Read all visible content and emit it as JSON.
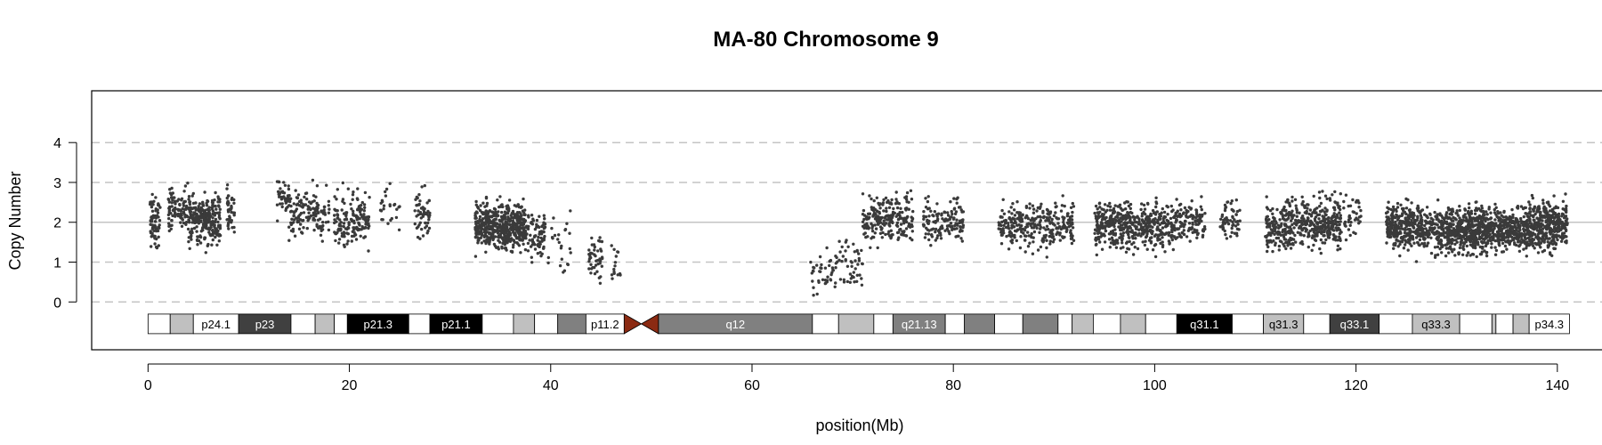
{
  "chart_data": {
    "type": "scatter",
    "title": "MA-80  Chromosome 9",
    "xlabel": "position(Mb)",
    "ylabel": "Copy Number",
    "xlim": [
      -5.6,
      147
    ],
    "ylim": [
      -1.2,
      5.3
    ],
    "x_ticks": [
      0,
      20,
      40,
      60,
      80,
      100,
      120,
      140
    ],
    "y_ticks": [
      0,
      1,
      2,
      3,
      4
    ],
    "hlines": [
      {
        "y": 0,
        "style": "dashed"
      },
      {
        "y": 1,
        "style": "dashed"
      },
      {
        "y": 2,
        "style": "solid"
      },
      {
        "y": 3,
        "style": "dashed"
      },
      {
        "y": 4,
        "style": "dashed"
      }
    ],
    "point_color": "#3a3a3a",
    "segments": [
      {
        "x": [
          0.2,
          1.2
        ],
        "mean": 2.0,
        "spread": 0.65,
        "count": 70
      },
      {
        "x": [
          2.0,
          4.0
        ],
        "mean": 2.3,
        "spread": 0.55,
        "count": 90
      },
      {
        "x": [
          4.0,
          7.2
        ],
        "mean": 2.1,
        "spread": 0.6,
        "count": 260
      },
      {
        "x": [
          7.8,
          8.6
        ],
        "mean": 2.3,
        "spread": 0.6,
        "count": 40
      },
      {
        "x": [
          12.8,
          14.0
        ],
        "mean": 2.6,
        "spread": 0.5,
        "count": 40
      },
      {
        "x": [
          14.0,
          18.0
        ],
        "mean": 2.2,
        "spread": 0.6,
        "count": 140
      },
      {
        "x": [
          18.5,
          20.5
        ],
        "mean": 2.0,
        "spread": 0.7,
        "count": 90
      },
      {
        "x": [
          20.5,
          22.0
        ],
        "mean": 2.1,
        "spread": 0.6,
        "count": 70
      },
      {
        "x": [
          23.0,
          25.0
        ],
        "mean": 2.3,
        "spread": 0.5,
        "count": 25
      },
      {
        "x": [
          26.5,
          28.0
        ],
        "mean": 2.2,
        "spread": 0.55,
        "count": 55
      },
      {
        "x": [
          32.5,
          37.5
        ],
        "mean": 1.9,
        "spread": 0.55,
        "count": 520
      },
      {
        "x": [
          37.5,
          39.5
        ],
        "mean": 1.7,
        "spread": 0.6,
        "count": 80
      },
      {
        "x": [
          39.5,
          42.0
        ],
        "mean": 1.4,
        "spread": 0.8,
        "count": 25
      },
      {
        "x": [
          43.8,
          45.2
        ],
        "mean": 1.1,
        "spread": 0.6,
        "count": 45
      },
      {
        "x": [
          46.0,
          47.0
        ],
        "mean": 0.9,
        "spread": 0.6,
        "count": 15
      },
      {
        "x": [
          65.8,
          68.5
        ],
        "mean": 0.7,
        "spread": 0.55,
        "count": 45
      },
      {
        "x": [
          68.5,
          71.0
        ],
        "mean": 0.9,
        "spread": 0.6,
        "count": 45
      },
      {
        "x": [
          71.0,
          76.0
        ],
        "mean": 2.1,
        "spread": 0.55,
        "count": 230
      },
      {
        "x": [
          77.0,
          81.0
        ],
        "mean": 2.0,
        "spread": 0.5,
        "count": 140
      },
      {
        "x": [
          84.5,
          87.0
        ],
        "mean": 1.9,
        "spread": 0.55,
        "count": 110
      },
      {
        "x": [
          87.0,
          92.0
        ],
        "mean": 1.9,
        "spread": 0.6,
        "count": 190
      },
      {
        "x": [
          94.0,
          99.0
        ],
        "mean": 1.9,
        "spread": 0.55,
        "count": 330
      },
      {
        "x": [
          99.0,
          102.0
        ],
        "mean": 1.9,
        "spread": 0.55,
        "count": 180
      },
      {
        "x": [
          102.0,
          105.0
        ],
        "mean": 2.0,
        "spread": 0.5,
        "count": 120
      },
      {
        "x": [
          106.5,
          108.5
        ],
        "mean": 2.1,
        "spread": 0.5,
        "count": 60
      },
      {
        "x": [
          111.0,
          114.5
        ],
        "mean": 1.9,
        "spread": 0.55,
        "count": 200
      },
      {
        "x": [
          114.5,
          118.5
        ],
        "mean": 2.0,
        "spread": 0.6,
        "count": 260
      },
      {
        "x": [
          118.5,
          120.5
        ],
        "mean": 2.1,
        "spread": 0.5,
        "count": 40
      },
      {
        "x": [
          123.0,
          126.0
        ],
        "mean": 1.9,
        "spread": 0.55,
        "count": 240
      },
      {
        "x": [
          126.0,
          129.0
        ],
        "mean": 1.8,
        "spread": 0.55,
        "count": 210
      },
      {
        "x": [
          129.0,
          133.0
        ],
        "mean": 1.8,
        "spread": 0.6,
        "count": 420
      },
      {
        "x": [
          133.0,
          137.0
        ],
        "mean": 1.8,
        "spread": 0.55,
        "count": 330
      },
      {
        "x": [
          137.0,
          141.0
        ],
        "mean": 1.9,
        "spread": 0.6,
        "count": 380
      }
    ],
    "ideogram": {
      "y": -0.55,
      "bands": [
        {
          "start": 0.0,
          "end": 2.2,
          "fill": "#ffffff",
          "label": ""
        },
        {
          "start": 2.2,
          "end": 4.5,
          "fill": "#c0c0c0",
          "label": ""
        },
        {
          "start": 4.5,
          "end": 9.0,
          "fill": "#ffffff",
          "label": "p24.1"
        },
        {
          "start": 9.0,
          "end": 14.2,
          "fill": "#404040",
          "label": "p23"
        },
        {
          "start": 14.2,
          "end": 16.6,
          "fill": "#ffffff",
          "label": ""
        },
        {
          "start": 16.6,
          "end": 18.5,
          "fill": "#c0c0c0",
          "label": ""
        },
        {
          "start": 18.5,
          "end": 19.8,
          "fill": "#ffffff",
          "label": ""
        },
        {
          "start": 19.8,
          "end": 25.9,
          "fill": "#000000",
          "label": "p21.3"
        },
        {
          "start": 25.9,
          "end": 28.0,
          "fill": "#ffffff",
          "label": ""
        },
        {
          "start": 28.0,
          "end": 33.2,
          "fill": "#000000",
          "label": "p21.1"
        },
        {
          "start": 33.2,
          "end": 36.3,
          "fill": "#ffffff",
          "label": ""
        },
        {
          "start": 36.3,
          "end": 38.4,
          "fill": "#c0c0c0",
          "label": ""
        },
        {
          "start": 38.4,
          "end": 40.7,
          "fill": "#ffffff",
          "label": ""
        },
        {
          "start": 40.7,
          "end": 43.5,
          "fill": "#808080",
          "label": ""
        },
        {
          "start": 43.5,
          "end": 47.3,
          "fill": "#ffffff",
          "label": "p11.2"
        },
        {
          "start": 50.7,
          "end": 66.0,
          "fill": "#808080",
          "label": "q12"
        },
        {
          "start": 66.0,
          "end": 68.6,
          "fill": "#ffffff",
          "label": ""
        },
        {
          "start": 68.6,
          "end": 72.1,
          "fill": "#c0c0c0",
          "label": ""
        },
        {
          "start": 72.1,
          "end": 74.0,
          "fill": "#ffffff",
          "label": ""
        },
        {
          "start": 74.0,
          "end": 79.2,
          "fill": "#808080",
          "label": "q21.13"
        },
        {
          "start": 79.2,
          "end": 81.1,
          "fill": "#ffffff",
          "label": ""
        },
        {
          "start": 81.1,
          "end": 84.1,
          "fill": "#808080",
          "label": ""
        },
        {
          "start": 84.1,
          "end": 86.9,
          "fill": "#ffffff",
          "label": ""
        },
        {
          "start": 86.9,
          "end": 90.4,
          "fill": "#808080",
          "label": ""
        },
        {
          "start": 90.4,
          "end": 91.8,
          "fill": "#ffffff",
          "label": ""
        },
        {
          "start": 91.8,
          "end": 93.9,
          "fill": "#c0c0c0",
          "label": ""
        },
        {
          "start": 93.9,
          "end": 96.6,
          "fill": "#ffffff",
          "label": ""
        },
        {
          "start": 96.6,
          "end": 99.1,
          "fill": "#c0c0c0",
          "label": ""
        },
        {
          "start": 99.1,
          "end": 102.2,
          "fill": "#ffffff",
          "label": ""
        },
        {
          "start": 102.2,
          "end": 107.7,
          "fill": "#000000",
          "label": "q31.1"
        },
        {
          "start": 107.7,
          "end": 110.8,
          "fill": "#ffffff",
          "label": ""
        },
        {
          "start": 110.8,
          "end": 114.8,
          "fill": "#c0c0c0",
          "label": "q31.3"
        },
        {
          "start": 114.8,
          "end": 117.4,
          "fill": "#ffffff",
          "label": ""
        },
        {
          "start": 117.4,
          "end": 122.3,
          "fill": "#404040",
          "label": "q33.1"
        },
        {
          "start": 122.3,
          "end": 125.6,
          "fill": "#ffffff",
          "label": ""
        },
        {
          "start": 125.6,
          "end": 130.3,
          "fill": "#c0c0c0",
          "label": "q33.3"
        },
        {
          "start": 130.3,
          "end": 133.5,
          "fill": "#ffffff",
          "label": ""
        },
        {
          "start": 133.5,
          "end": 133.9,
          "fill": "#c0c0c0",
          "label": ""
        },
        {
          "start": 133.9,
          "end": 135.6,
          "fill": "#ffffff",
          "label": ""
        },
        {
          "start": 135.6,
          "end": 137.2,
          "fill": "#c0c0c0",
          "label": ""
        },
        {
          "start": 137.2,
          "end": 141.2,
          "fill": "#ffffff",
          "label": "p34.3"
        }
      ],
      "centromere": {
        "start": 47.3,
        "mid": 49.0,
        "end": 50.7,
        "fill": "#8b2a12"
      }
    }
  }
}
